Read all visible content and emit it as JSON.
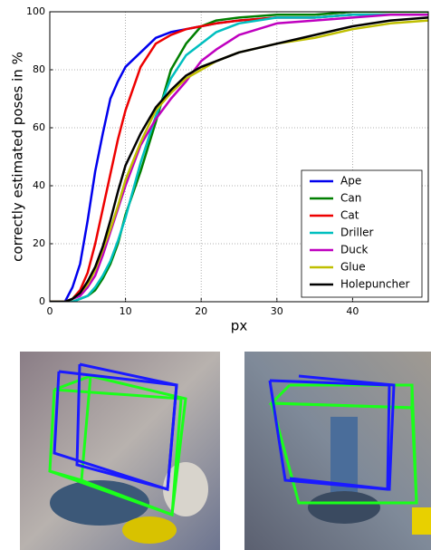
{
  "chart_data": {
    "type": "line",
    "xlabel": "px",
    "ylabel": "correctly estimated poses in %",
    "x": [
      0,
      2,
      3,
      4,
      5,
      6,
      7,
      8,
      9,
      10,
      12,
      14,
      16,
      18,
      20,
      22,
      25,
      30,
      35,
      40,
      45,
      50
    ],
    "series": [
      {
        "name": "Ape",
        "color": "#0000ee",
        "values": [
          0,
          0,
          5,
          13,
          28,
          45,
          58,
          70,
          76,
          81,
          86,
          91,
          93,
          94,
          95,
          96,
          97,
          98,
          98,
          99,
          99,
          99
        ]
      },
      {
        "name": "Can",
        "color": "#007f00",
        "values": [
          0,
          0,
          0,
          1,
          2,
          4,
          8,
          13,
          20,
          30,
          45,
          62,
          80,
          89,
          95,
          97,
          98,
          99,
          99,
          100,
          100,
          100
        ]
      },
      {
        "name": "Cat",
        "color": "#ee0000",
        "values": [
          0,
          0,
          1,
          4,
          10,
          20,
          32,
          44,
          56,
          66,
          81,
          89,
          92,
          94,
          95,
          96,
          97,
          98,
          98,
          99,
          99,
          99
        ]
      },
      {
        "name": "Driller",
        "color": "#00bfbf",
        "values": [
          0,
          0,
          0,
          1,
          2,
          5,
          9,
          14,
          21,
          29,
          48,
          64,
          77,
          85,
          89,
          93,
          96,
          98,
          98,
          99,
          99,
          99
        ]
      },
      {
        "name": "Duck",
        "color": "#bf00bf",
        "values": [
          0,
          0,
          1,
          2,
          5,
          9,
          16,
          24,
          32,
          40,
          54,
          63,
          70,
          76,
          83,
          87,
          92,
          96,
          97,
          98,
          99,
          99
        ]
      },
      {
        "name": "Glue",
        "color": "#bfbf00",
        "values": [
          0,
          0,
          1,
          3,
          6,
          11,
          18,
          25,
          33,
          42,
          55,
          66,
          72,
          77,
          80,
          83,
          86,
          89,
          91,
          94,
          96,
          97
        ]
      },
      {
        "name": "Holepuncher",
        "color": "#000000",
        "values": [
          0,
          0,
          1,
          3,
          7,
          12,
          19,
          28,
          38,
          47,
          58,
          67,
          73,
          78,
          81,
          83,
          86,
          89,
          92,
          95,
          97,
          98
        ]
      }
    ],
    "xlim": [
      0,
      50
    ],
    "xticks": [
      0,
      10,
      20,
      30,
      40
    ],
    "ylim": [
      0,
      100
    ],
    "yticks": [
      0,
      20,
      40,
      60,
      80,
      100
    ],
    "grid": true,
    "legend": "lower right"
  }
}
